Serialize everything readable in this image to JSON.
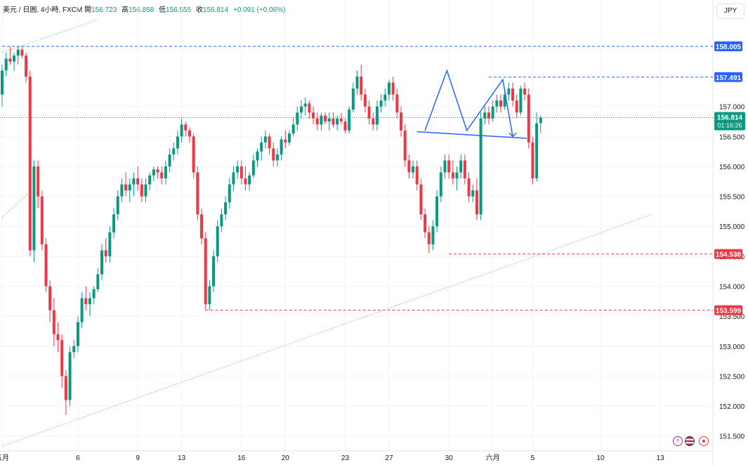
{
  "header": {
    "symbol": "美元 / 日圓, 4小時, FXCM",
    "open_label": "開",
    "open": "156.723",
    "high_label": "高",
    "high": "156.858",
    "low_label": "低",
    "low": "156.555",
    "close_label": "收",
    "close": "156.814",
    "change": "+0.091 (+0.06%)"
  },
  "currency_button": "JPY",
  "colors": {
    "up": "#089981",
    "down": "#f23645",
    "level": "#2962ff",
    "support": "#f23645",
    "trend": "#4caf50",
    "pattern": "#2962ff"
  },
  "chart_data": {
    "type": "candlestick",
    "title": "美元 / 日圓, 4小時, FXCM",
    "ylim": [
      151.25,
      158.45
    ],
    "y_ticks": [
      "151.500",
      "152.000",
      "152.500",
      "153.000",
      "153.500",
      "154.000",
      "154.500",
      "155.000",
      "155.500",
      "156.000",
      "156.500",
      "157.000"
    ],
    "x_ticks": [
      {
        "label": "五月",
        "i": 0
      },
      {
        "label": "6",
        "i": 19
      },
      {
        "label": "9",
        "i": 34
      },
      {
        "label": "13",
        "i": 45
      },
      {
        "label": "16",
        "i": 60
      },
      {
        "label": "20",
        "i": 71
      },
      {
        "label": "23",
        "i": 86
      },
      {
        "label": "27",
        "i": 97
      },
      {
        "label": "30",
        "i": 112
      },
      {
        "label": "六月",
        "i": 123
      },
      {
        "label": "5",
        "i": 133
      },
      {
        "label": "10",
        "i": 150
      },
      {
        "label": "13",
        "i": 165
      }
    ],
    "price_labels": [
      {
        "text": "158.005",
        "value": 158.005,
        "color": "#2962ff"
      },
      {
        "text": "157.491",
        "value": 157.491,
        "color": "#2962ff"
      },
      {
        "text": "154.538",
        "value": 154.538,
        "color": "#f23645"
      },
      {
        "text": "153.599",
        "value": 153.599,
        "color": "#f23645"
      }
    ],
    "current_price": {
      "text": "156.814",
      "countdown": "01:16:26",
      "value": 156.814,
      "color": "#089981"
    },
    "level_lines": [
      {
        "value": 158.005,
        "from_i": 0,
        "color": "#2962ff"
      },
      {
        "value": 157.491,
        "from_i": 122,
        "color": "#2962ff"
      },
      {
        "value": 154.538,
        "from_i": 112,
        "color": "#f23645"
      },
      {
        "value": 153.599,
        "from_i": 51,
        "color": "#f23645"
      }
    ],
    "trendlines": [
      {
        "i1": 0,
        "y1": 157.9,
        "i2": 24,
        "y2": 158.45,
        "color": "#4caf50"
      },
      {
        "i1": 0,
        "y1": 155.15,
        "i2": 6.5,
        "y2": 155.55,
        "color": "#4caf50"
      },
      {
        "i1": 0,
        "y1": 151.33,
        "i2": 163,
        "y2": 155.2,
        "color": "#4caf50"
      }
    ],
    "pattern": [
      {
        "i": 106,
        "v": 156.6
      },
      {
        "i": 111.5,
        "v": 157.6
      },
      {
        "i": 116.5,
        "v": 156.6
      },
      {
        "i": 125.5,
        "v": 157.45
      },
      {
        "i": 128,
        "v": 156.5
      }
    ],
    "neckline": {
      "i1": 104,
      "y1": 156.58,
      "i2": 131.5,
      "y2": 156.47
    },
    "candles": [
      [
        157.2,
        157.7,
        157.0,
        157.6
      ],
      [
        157.6,
        157.9,
        157.5,
        157.8
      ],
      [
        157.8,
        158.0,
        157.7,
        157.75
      ],
      [
        157.75,
        157.9,
        157.6,
        157.85
      ],
      [
        157.85,
        158.0,
        157.7,
        157.95
      ],
      [
        157.95,
        158.0,
        157.8,
        157.85
      ],
      [
        157.85,
        157.9,
        157.4,
        157.5
      ],
      [
        157.5,
        157.6,
        154.5,
        154.6
      ],
      [
        154.6,
        156.1,
        154.4,
        156.0
      ],
      [
        156.0,
        156.1,
        155.3,
        155.5
      ],
      [
        155.5,
        155.6,
        154.6,
        154.7
      ],
      [
        154.7,
        154.8,
        153.9,
        154.0
      ],
      [
        154.0,
        154.1,
        153.4,
        153.6
      ],
      [
        153.6,
        153.8,
        153.0,
        153.2
      ],
      [
        153.2,
        153.4,
        152.9,
        153.1
      ],
      [
        153.1,
        153.2,
        152.3,
        152.5
      ],
      [
        152.5,
        152.6,
        151.85,
        152.1
      ],
      [
        152.1,
        153.0,
        152.0,
        152.9
      ],
      [
        152.9,
        153.1,
        152.8,
        153.0
      ],
      [
        153.0,
        153.5,
        152.9,
        153.4
      ],
      [
        153.4,
        153.9,
        153.3,
        153.8
      ],
      [
        153.8,
        154.0,
        153.6,
        153.7
      ],
      [
        153.7,
        153.9,
        153.5,
        153.8
      ],
      [
        153.8,
        154.0,
        153.7,
        153.95
      ],
      [
        153.95,
        154.3,
        153.9,
        154.2
      ],
      [
        154.2,
        154.7,
        154.1,
        154.6
      ],
      [
        154.6,
        154.8,
        154.4,
        154.5
      ],
      [
        154.5,
        155.0,
        154.4,
        154.9
      ],
      [
        154.9,
        155.3,
        154.8,
        155.2
      ],
      [
        155.2,
        155.6,
        155.1,
        155.5
      ],
      [
        155.5,
        155.8,
        155.4,
        155.7
      ],
      [
        155.7,
        155.9,
        155.5,
        155.6
      ],
      [
        155.6,
        155.8,
        155.4,
        155.7
      ],
      [
        155.7,
        155.9,
        155.5,
        155.8
      ],
      [
        155.8,
        156.0,
        155.6,
        155.7
      ],
      [
        155.7,
        155.8,
        155.4,
        155.5
      ],
      [
        155.5,
        155.8,
        155.4,
        155.7
      ],
      [
        155.7,
        155.9,
        155.6,
        155.85
      ],
      [
        155.85,
        156.0,
        155.75,
        155.95
      ],
      [
        155.95,
        156.0,
        155.8,
        155.9
      ],
      [
        155.9,
        156.0,
        155.7,
        155.8
      ],
      [
        155.8,
        156.1,
        155.7,
        156.0
      ],
      [
        156.0,
        156.3,
        155.9,
        156.2
      ],
      [
        156.2,
        156.4,
        156.1,
        156.3
      ],
      [
        156.3,
        156.6,
        156.2,
        156.5
      ],
      [
        156.5,
        156.8,
        156.4,
        156.7
      ],
      [
        156.7,
        156.75,
        156.5,
        156.6
      ],
      [
        156.6,
        156.65,
        156.4,
        156.5
      ],
      [
        156.5,
        156.55,
        155.8,
        155.9
      ],
      [
        155.9,
        156.0,
        155.1,
        155.2
      ],
      [
        155.2,
        155.3,
        154.7,
        154.8
      ],
      [
        154.8,
        154.9,
        153.6,
        153.7
      ],
      [
        153.7,
        154.1,
        153.6,
        154.0
      ],
      [
        154.0,
        154.6,
        153.9,
        154.5
      ],
      [
        154.5,
        155.1,
        154.4,
        155.0
      ],
      [
        155.0,
        155.3,
        154.9,
        155.2
      ],
      [
        155.2,
        155.5,
        155.1,
        155.4
      ],
      [
        155.4,
        155.8,
        155.3,
        155.7
      ],
      [
        155.7,
        156.0,
        155.6,
        155.9
      ],
      [
        155.9,
        156.1,
        155.8,
        156.0
      ],
      [
        156.0,
        156.1,
        155.7,
        155.8
      ],
      [
        155.8,
        156.0,
        155.6,
        155.7
      ],
      [
        155.7,
        155.9,
        155.6,
        155.85
      ],
      [
        155.85,
        156.2,
        155.8,
        156.1
      ],
      [
        156.1,
        156.3,
        156.0,
        156.25
      ],
      [
        156.25,
        156.5,
        156.1,
        156.4
      ],
      [
        156.4,
        156.6,
        156.3,
        156.5
      ],
      [
        156.5,
        156.55,
        156.2,
        156.3
      ],
      [
        156.3,
        156.4,
        156.0,
        156.1
      ],
      [
        156.1,
        156.3,
        156.0,
        156.2
      ],
      [
        156.2,
        156.5,
        156.1,
        156.45
      ],
      [
        156.45,
        156.6,
        156.3,
        156.4
      ],
      [
        156.4,
        156.6,
        156.35,
        156.55
      ],
      [
        156.55,
        156.8,
        156.5,
        156.7
      ],
      [
        156.7,
        157.0,
        156.6,
        156.9
      ],
      [
        156.9,
        157.1,
        156.8,
        157.0
      ],
      [
        157.0,
        157.15,
        156.85,
        157.05
      ],
      [
        157.05,
        157.1,
        156.8,
        156.9
      ],
      [
        156.9,
        157.0,
        156.7,
        156.8
      ],
      [
        156.8,
        156.9,
        156.6,
        156.7
      ],
      [
        156.7,
        156.9,
        156.6,
        156.85
      ],
      [
        156.85,
        156.9,
        156.7,
        156.75
      ],
      [
        156.75,
        156.9,
        156.6,
        156.8
      ],
      [
        156.8,
        156.9,
        156.65,
        156.7
      ],
      [
        156.7,
        156.85,
        156.6,
        156.8
      ],
      [
        156.8,
        156.9,
        156.7,
        156.75
      ],
      [
        156.75,
        156.8,
        156.55,
        156.6
      ],
      [
        156.6,
        157.0,
        156.55,
        156.95
      ],
      [
        156.95,
        157.4,
        156.9,
        157.3
      ],
      [
        157.3,
        157.6,
        157.2,
        157.5
      ],
      [
        157.5,
        157.7,
        157.1,
        157.2
      ],
      [
        157.2,
        157.3,
        156.9,
        157.0
      ],
      [
        157.0,
        157.1,
        156.7,
        156.8
      ],
      [
        156.8,
        156.9,
        156.6,
        156.7
      ],
      [
        156.7,
        157.1,
        156.6,
        157.0
      ],
      [
        157.0,
        157.2,
        156.9,
        157.1
      ],
      [
        157.1,
        157.3,
        157.0,
        157.2
      ],
      [
        157.2,
        157.45,
        157.1,
        157.4
      ],
      [
        157.4,
        157.5,
        157.1,
        157.2
      ],
      [
        157.2,
        157.3,
        156.8,
        156.9
      ],
      [
        156.9,
        157.0,
        156.5,
        156.6
      ],
      [
        156.6,
        156.7,
        156.0,
        156.1
      ],
      [
        156.1,
        156.2,
        155.8,
        155.9
      ],
      [
        155.9,
        156.1,
        155.8,
        156.0
      ],
      [
        156.0,
        156.1,
        155.6,
        155.7
      ],
      [
        155.7,
        155.8,
        155.1,
        155.2
      ],
      [
        155.2,
        155.3,
        154.8,
        154.9
      ],
      [
        154.9,
        155.0,
        154.55,
        154.7
      ],
      [
        154.7,
        155.1,
        154.6,
        155.0
      ],
      [
        155.0,
        155.6,
        154.9,
        155.5
      ],
      [
        155.5,
        156.0,
        155.4,
        155.9
      ],
      [
        155.9,
        156.2,
        155.8,
        156.1
      ],
      [
        156.1,
        156.2,
        155.8,
        155.9
      ],
      [
        155.9,
        156.1,
        155.7,
        155.8
      ],
      [
        155.8,
        156.0,
        155.6,
        155.9
      ],
      [
        155.9,
        156.2,
        155.8,
        156.1
      ],
      [
        156.1,
        156.2,
        155.7,
        155.8
      ],
      [
        155.8,
        155.9,
        155.4,
        155.5
      ],
      [
        155.5,
        155.7,
        155.4,
        155.6
      ],
      [
        155.6,
        155.8,
        155.1,
        155.2
      ],
      [
        155.2,
        156.9,
        155.1,
        156.8
      ],
      [
        156.8,
        157.0,
        156.7,
        156.9
      ],
      [
        156.9,
        157.0,
        156.7,
        156.8
      ],
      [
        156.8,
        157.1,
        156.75,
        157.0
      ],
      [
        157.0,
        157.2,
        156.9,
        157.1
      ],
      [
        157.1,
        157.2,
        156.9,
        157.0
      ],
      [
        157.0,
        157.3,
        156.95,
        157.2
      ],
      [
        157.2,
        157.4,
        157.1,
        157.3
      ],
      [
        157.3,
        157.4,
        157.0,
        157.1
      ],
      [
        157.1,
        157.2,
        156.8,
        156.9
      ],
      [
        156.9,
        157.35,
        156.85,
        157.3
      ],
      [
        157.3,
        157.4,
        157.1,
        157.2
      ],
      [
        157.2,
        157.3,
        156.3,
        156.4
      ],
      [
        156.4,
        156.5,
        155.7,
        155.8
      ],
      [
        155.8,
        156.9,
        155.75,
        156.72
      ],
      [
        156.723,
        156.858,
        156.555,
        156.814
      ]
    ]
  }
}
